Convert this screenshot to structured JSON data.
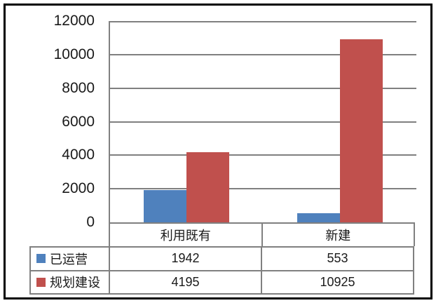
{
  "colors": {
    "background": "#ffffff",
    "frame": "#000000",
    "grid": "#808080",
    "text": "#1a1a1a",
    "series_blue": "#4F81BD",
    "series_red": "#C0504D"
  },
  "chart_data": {
    "type": "bar",
    "title": "",
    "xlabel": "",
    "ylabel": "",
    "categories": [
      "利用既有",
      "新建"
    ],
    "series": [
      {
        "name": "已运营",
        "color": "#4F81BD",
        "values": [
          1942,
          553
        ]
      },
      {
        "name": "规划建设",
        "color": "#C0504D",
        "values": [
          4195,
          10925
        ]
      }
    ],
    "ylim": [
      0,
      12000
    ],
    "ytick_interval": 2000,
    "yticks": [
      "12000",
      "10000",
      "8000",
      "6000",
      "4000",
      "2000",
      "0"
    ],
    "grid": true,
    "legend_position": "data-table-left",
    "data_table_shown": true
  }
}
